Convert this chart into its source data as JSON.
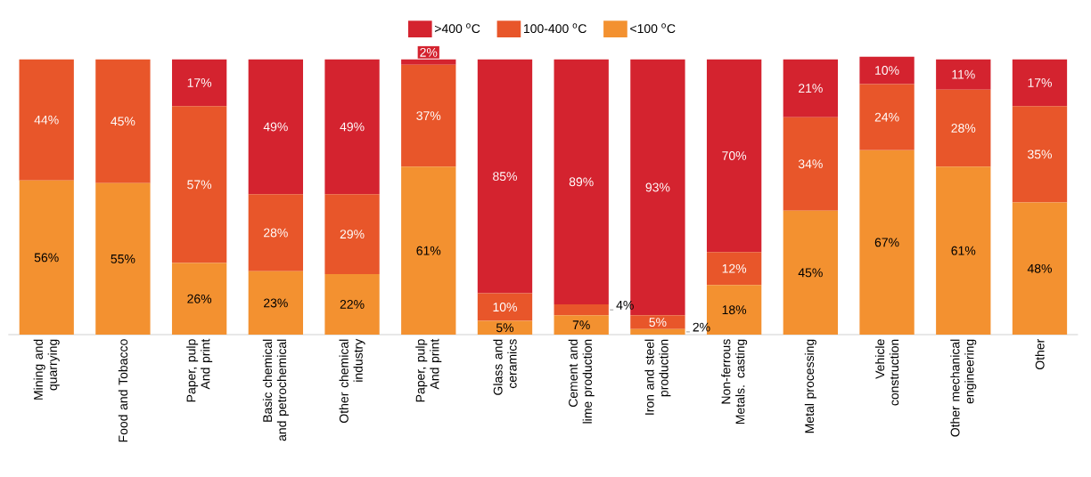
{
  "chart_data": {
    "type": "bar",
    "stacked": true,
    "legend": "top",
    "grid": false,
    "tick_labels": "x",
    "categories": [
      "Mining and quarrying",
      "Food and Tobacco",
      "Paper, pulp And print",
      "Basic chemical and petrochemical",
      "Other chemical industry",
      "Paper, pulp And print",
      "Glass and ceramics",
      "Cement and lime production",
      "Iron and steel production",
      "Non-ferrous Metals. casting",
      "Metal processing",
      "Vehicle construction",
      "Other mechanical engineering",
      "Other"
    ],
    "series": [
      {
        "name": "<100 $^{o}$C",
        "color": "#f39130",
        "values": [
          56,
          55,
          26,
          23,
          22,
          61,
          5,
          7,
          2,
          18,
          45,
          67,
          61,
          48
        ],
        "value_labels": [
          "56%",
          "55%",
          "26%",
          "23%",
          "22%",
          "61%",
          "5%",
          "7%",
          "2%",
          "18%",
          "45%",
          "67%",
          "61%",
          "48%"
        ]
      },
      {
        "name": "100-400 $^{o}$C",
        "color": "#e8562a",
        "values": [
          44,
          45,
          57,
          28,
          29,
          37,
          10,
          4,
          5,
          12,
          34,
          24,
          28,
          35
        ],
        "value_labels": [
          "44%",
          "45%",
          "57%",
          "28%",
          "29%",
          "37%",
          "10%",
          "4%",
          "5%",
          "12%",
          "34%",
          "24%",
          "28%",
          "35%"
        ]
      },
      {
        "name": ">400 $^{o}$C",
        "color": "#d4232f",
        "values": [
          0,
          0,
          17,
          49,
          49,
          2,
          85,
          89,
          93,
          70,
          21,
          10,
          11,
          17
        ],
        "value_labels": [
          null,
          null,
          "17%",
          "49%",
          "49%",
          "2%",
          "85%",
          "89%",
          "93%",
          "70%",
          "21%",
          "10%",
          "11%",
          "17%"
        ]
      }
    ]
  }
}
